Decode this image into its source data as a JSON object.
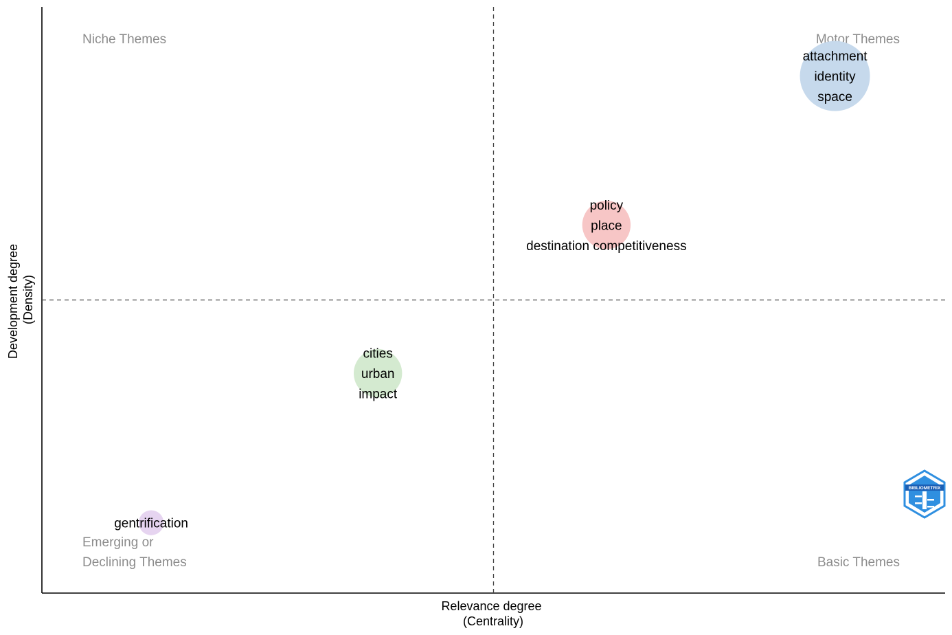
{
  "chart_data": {
    "type": "scatter",
    "title": "",
    "xlabel": [
      "Relevance degree",
      "(Centrality)"
    ],
    "ylabel": [
      "Development degree",
      "(Density)"
    ],
    "xlim": [
      0,
      1
    ],
    "ylim": [
      0,
      1
    ],
    "x_ref": 0.5,
    "y_ref": 0.5,
    "grid": false,
    "quadrant_labels": {
      "top_left": [
        "Niche Themes"
      ],
      "top_right": [
        "Motor Themes"
      ],
      "bottom_left": [
        "Emerging or",
        "Declining Themes"
      ],
      "bottom_right": [
        "Basic Themes"
      ]
    },
    "clusters": [
      {
        "x": 0.878,
        "y": 0.882,
        "size": 1.0,
        "color": "#c6d9ec",
        "labels": [
          "attachment",
          "identity",
          "space"
        ]
      },
      {
        "x": 0.625,
        "y": 0.628,
        "size": 0.45,
        "color": "#f7c6c6",
        "labels": [
          "policy",
          "place",
          "destination competitiveness"
        ]
      },
      {
        "x": 0.372,
        "y": 0.375,
        "size": 0.45,
        "color": "#d4ead0",
        "labels": [
          "cities",
          "urban",
          "impact"
        ]
      },
      {
        "x": 0.121,
        "y": 0.12,
        "size": 0.1,
        "color": "#e6d4f0",
        "labels": [
          "gentrification"
        ]
      }
    ]
  },
  "logo": {
    "text": "BIBLIOMETRIX",
    "color": "#2f8fe0"
  }
}
